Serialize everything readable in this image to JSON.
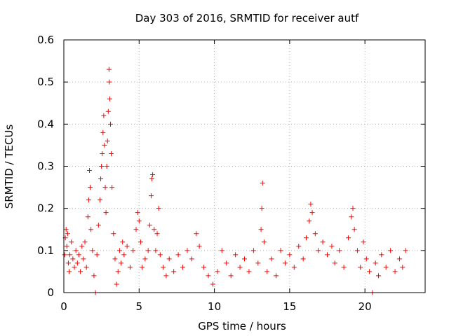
{
  "chart_data": {
    "type": "scatter",
    "title": "Day 303 of 2016, SRMTID for receiver autf",
    "xlabel": "GPS time / hours",
    "ylabel": "SRMTID / TECUs",
    "xlim": [
      0,
      24
    ],
    "ylim": [
      0,
      0.6
    ],
    "xticks": [
      0,
      5,
      10,
      15,
      20
    ],
    "xtick_labels": [
      "0",
      "5",
      "10",
      "15",
      "20"
    ],
    "yticks": [
      0,
      0.1,
      0.2,
      0.3,
      0.4,
      0.5,
      0.6
    ],
    "ytick_labels": [
      "0",
      "0.1",
      "0.2",
      "0.3",
      "0.4",
      "0.5",
      "0.6"
    ],
    "grid": true,
    "marker": "+",
    "color": "#ff0000",
    "series": [
      {
        "name": "SRMTID",
        "points": [
          [
            0.05,
            0.09
          ],
          [
            0.1,
            0.13
          ],
          [
            0.15,
            0.15
          ],
          [
            0.2,
            0.11
          ],
          [
            0.25,
            0.14
          ],
          [
            0.3,
            0.07
          ],
          [
            0.35,
            0.05
          ],
          [
            0.4,
            0.09
          ],
          [
            0.5,
            0.12
          ],
          [
            0.6,
            0.08
          ],
          [
            0.7,
            0.06
          ],
          [
            0.8,
            0.1
          ],
          [
            0.9,
            0.07
          ],
          [
            1.0,
            0.09
          ],
          [
            1.1,
            0.05
          ],
          [
            1.2,
            0.11
          ],
          [
            1.3,
            0.08
          ],
          [
            1.4,
            0.12
          ],
          [
            1.5,
            0.06
          ],
          [
            1.6,
            0.18
          ],
          [
            1.65,
            0.22
          ],
          [
            1.7,
            0.29
          ],
          [
            1.75,
            0.25
          ],
          [
            1.8,
            0.15
          ],
          [
            1.9,
            0.1
          ],
          [
            2.0,
            0.04
          ],
          [
            2.1,
            0.0
          ],
          [
            2.2,
            0.09
          ],
          [
            2.3,
            0.16
          ],
          [
            2.4,
            0.22
          ],
          [
            2.45,
            0.27
          ],
          [
            2.5,
            0.3
          ],
          [
            2.55,
            0.33
          ],
          [
            2.6,
            0.38
          ],
          [
            2.65,
            0.42
          ],
          [
            2.7,
            0.35
          ],
          [
            2.75,
            0.25
          ],
          [
            2.8,
            0.19
          ],
          [
            2.85,
            0.3
          ],
          [
            2.9,
            0.36
          ],
          [
            2.95,
            0.43
          ],
          [
            3.0,
            0.53
          ],
          [
            3.02,
            0.5
          ],
          [
            3.05,
            0.46
          ],
          [
            3.1,
            0.4
          ],
          [
            3.15,
            0.33
          ],
          [
            3.2,
            0.25
          ],
          [
            3.3,
            0.14
          ],
          [
            3.4,
            0.08
          ],
          [
            3.5,
            0.02
          ],
          [
            3.6,
            0.05
          ],
          [
            3.7,
            0.1
          ],
          [
            3.8,
            0.07
          ],
          [
            3.9,
            0.12
          ],
          [
            4.0,
            0.09
          ],
          [
            4.2,
            0.11
          ],
          [
            4.4,
            0.06
          ],
          [
            4.6,
            0.1
          ],
          [
            4.8,
            0.15
          ],
          [
            4.9,
            0.19
          ],
          [
            5.0,
            0.17
          ],
          [
            5.1,
            0.12
          ],
          [
            5.2,
            0.06
          ],
          [
            5.4,
            0.08
          ],
          [
            5.6,
            0.1
          ],
          [
            5.7,
            0.16
          ],
          [
            5.8,
            0.23
          ],
          [
            5.85,
            0.27
          ],
          [
            5.9,
            0.28
          ],
          [
            6.0,
            0.15
          ],
          [
            6.1,
            0.1
          ],
          [
            6.2,
            0.14
          ],
          [
            6.3,
            0.2
          ],
          [
            6.4,
            0.09
          ],
          [
            6.6,
            0.06
          ],
          [
            6.8,
            0.04
          ],
          [
            7.0,
            0.08
          ],
          [
            7.3,
            0.05
          ],
          [
            7.6,
            0.09
          ],
          [
            7.9,
            0.06
          ],
          [
            8.2,
            0.1
          ],
          [
            8.5,
            0.08
          ],
          [
            8.8,
            0.14
          ],
          [
            9.0,
            0.11
          ],
          [
            9.3,
            0.06
          ],
          [
            9.6,
            0.04
          ],
          [
            9.9,
            0.02
          ],
          [
            10.2,
            0.05
          ],
          [
            10.5,
            0.1
          ],
          [
            10.8,
            0.07
          ],
          [
            11.1,
            0.04
          ],
          [
            11.4,
            0.09
          ],
          [
            11.7,
            0.06
          ],
          [
            12.0,
            0.08
          ],
          [
            12.3,
            0.05
          ],
          [
            12.6,
            0.1
          ],
          [
            12.9,
            0.07
          ],
          [
            13.1,
            0.15
          ],
          [
            13.15,
            0.2
          ],
          [
            13.2,
            0.26
          ],
          [
            13.3,
            0.12
          ],
          [
            13.5,
            0.05
          ],
          [
            13.8,
            0.08
          ],
          [
            14.1,
            0.04
          ],
          [
            14.4,
            0.1
          ],
          [
            14.7,
            0.07
          ],
          [
            15.0,
            0.09
          ],
          [
            15.3,
            0.06
          ],
          [
            15.6,
            0.11
          ],
          [
            15.9,
            0.08
          ],
          [
            16.1,
            0.13
          ],
          [
            16.3,
            0.17
          ],
          [
            16.4,
            0.21
          ],
          [
            16.5,
            0.19
          ],
          [
            16.7,
            0.14
          ],
          [
            16.9,
            0.1
          ],
          [
            17.2,
            0.12
          ],
          [
            17.5,
            0.09
          ],
          [
            17.8,
            0.11
          ],
          [
            18.0,
            0.07
          ],
          [
            18.3,
            0.1
          ],
          [
            18.6,
            0.06
          ],
          [
            18.9,
            0.13
          ],
          [
            19.1,
            0.18
          ],
          [
            19.2,
            0.2
          ],
          [
            19.3,
            0.15
          ],
          [
            19.5,
            0.1
          ],
          [
            19.7,
            0.06
          ],
          [
            19.9,
            0.12
          ],
          [
            20.1,
            0.08
          ],
          [
            20.3,
            0.05
          ],
          [
            20.5,
            0.0
          ],
          [
            20.7,
            0.07
          ],
          [
            20.9,
            0.04
          ],
          [
            21.1,
            0.09
          ],
          [
            21.4,
            0.06
          ],
          [
            21.7,
            0.1
          ],
          [
            22.0,
            0.05
          ],
          [
            22.3,
            0.08
          ],
          [
            22.5,
            0.06
          ],
          [
            22.7,
            0.1
          ]
        ]
      }
    ]
  }
}
